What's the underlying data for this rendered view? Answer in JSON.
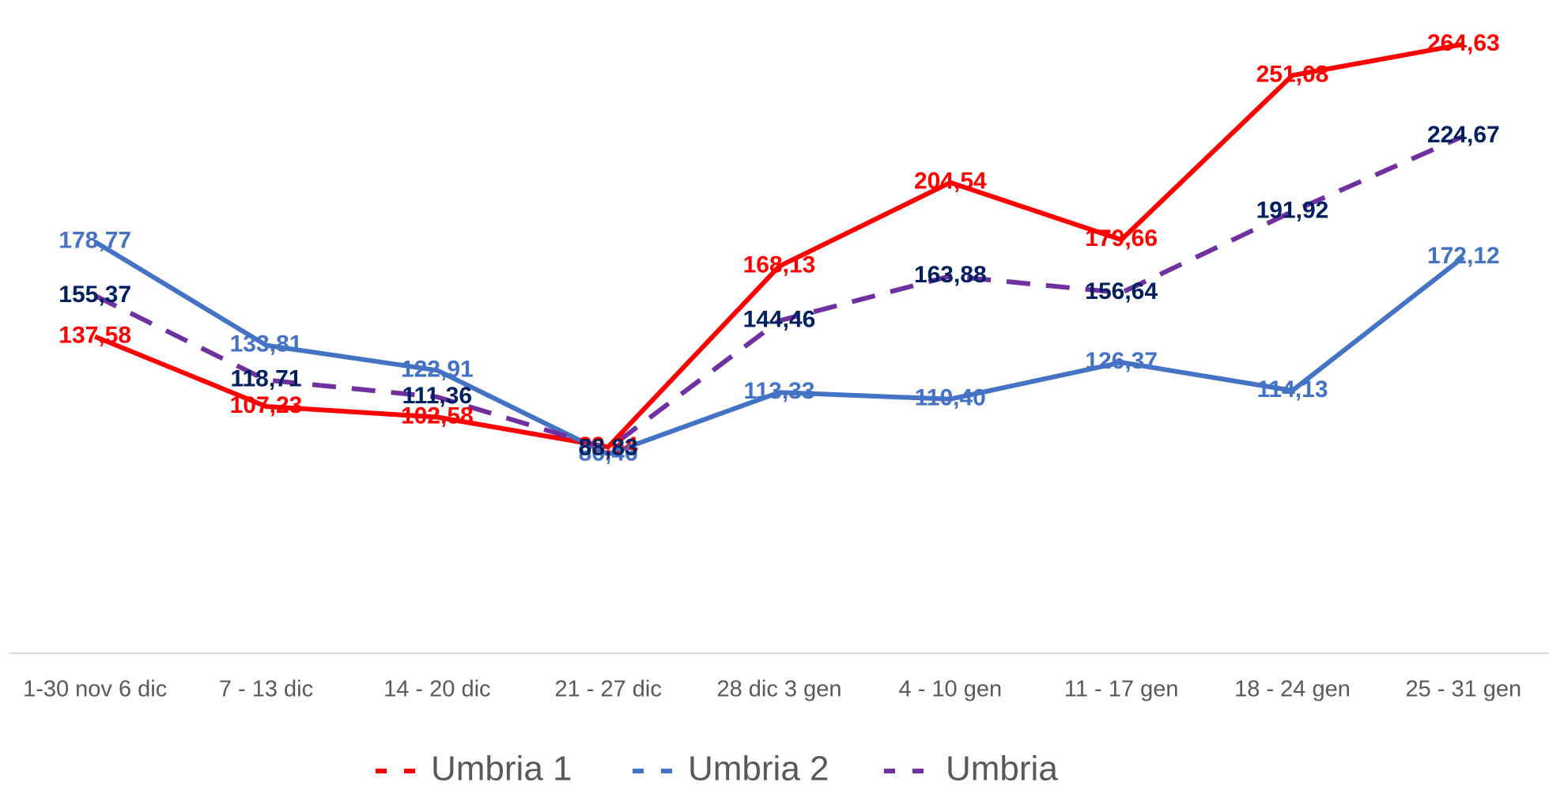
{
  "chart_data": {
    "type": "line",
    "categories": [
      "1-30 nov 6 dic",
      "7 - 13 dic",
      "14 - 20 dic",
      "21 - 27 dic",
      "28 dic 3 gen",
      "4 - 10 gen",
      "11 - 17 gen",
      "18 - 24 gen",
      "25 - 31 gen"
    ],
    "series": [
      {
        "name": "Umbria 1",
        "color": "#ff0000",
        "label_color": "#ff0000",
        "dashed": false,
        "values": [
          137.58,
          107.23,
          102.58,
          89.64,
          168.13,
          204.54,
          179.66,
          251.08,
          264.63
        ],
        "value_labels": [
          "137,58",
          "107,23",
          "102,58",
          "89,64",
          "168,13",
          "204,54",
          "179,66",
          "251,08",
          "264,63"
        ]
      },
      {
        "name": "Umbria 2",
        "color": "#4472c4",
        "label_color": "#4472c4",
        "dashed": false,
        "values": [
          178.77,
          133.81,
          122.91,
          86.46,
          113.33,
          110.4,
          126.37,
          114.13,
          172.12
        ],
        "value_labels": [
          "178,77",
          "133,81",
          "122,91",
          "86,46",
          "113,33",
          "110,40",
          "126,37",
          "114,13",
          "172,12"
        ]
      },
      {
        "name": "Umbria",
        "color": "#7030a0",
        "label_color": "#002060",
        "dashed": true,
        "values": [
          155.37,
          118.71,
          111.36,
          88.83,
          144.46,
          163.88,
          156.64,
          191.92,
          224.67
        ],
        "value_labels": [
          "155,37",
          "118,71",
          "111,36",
          "88,83",
          "144,46",
          "163,88",
          "156,64",
          "191,92",
          "224,67"
        ]
      }
    ]
  }
}
